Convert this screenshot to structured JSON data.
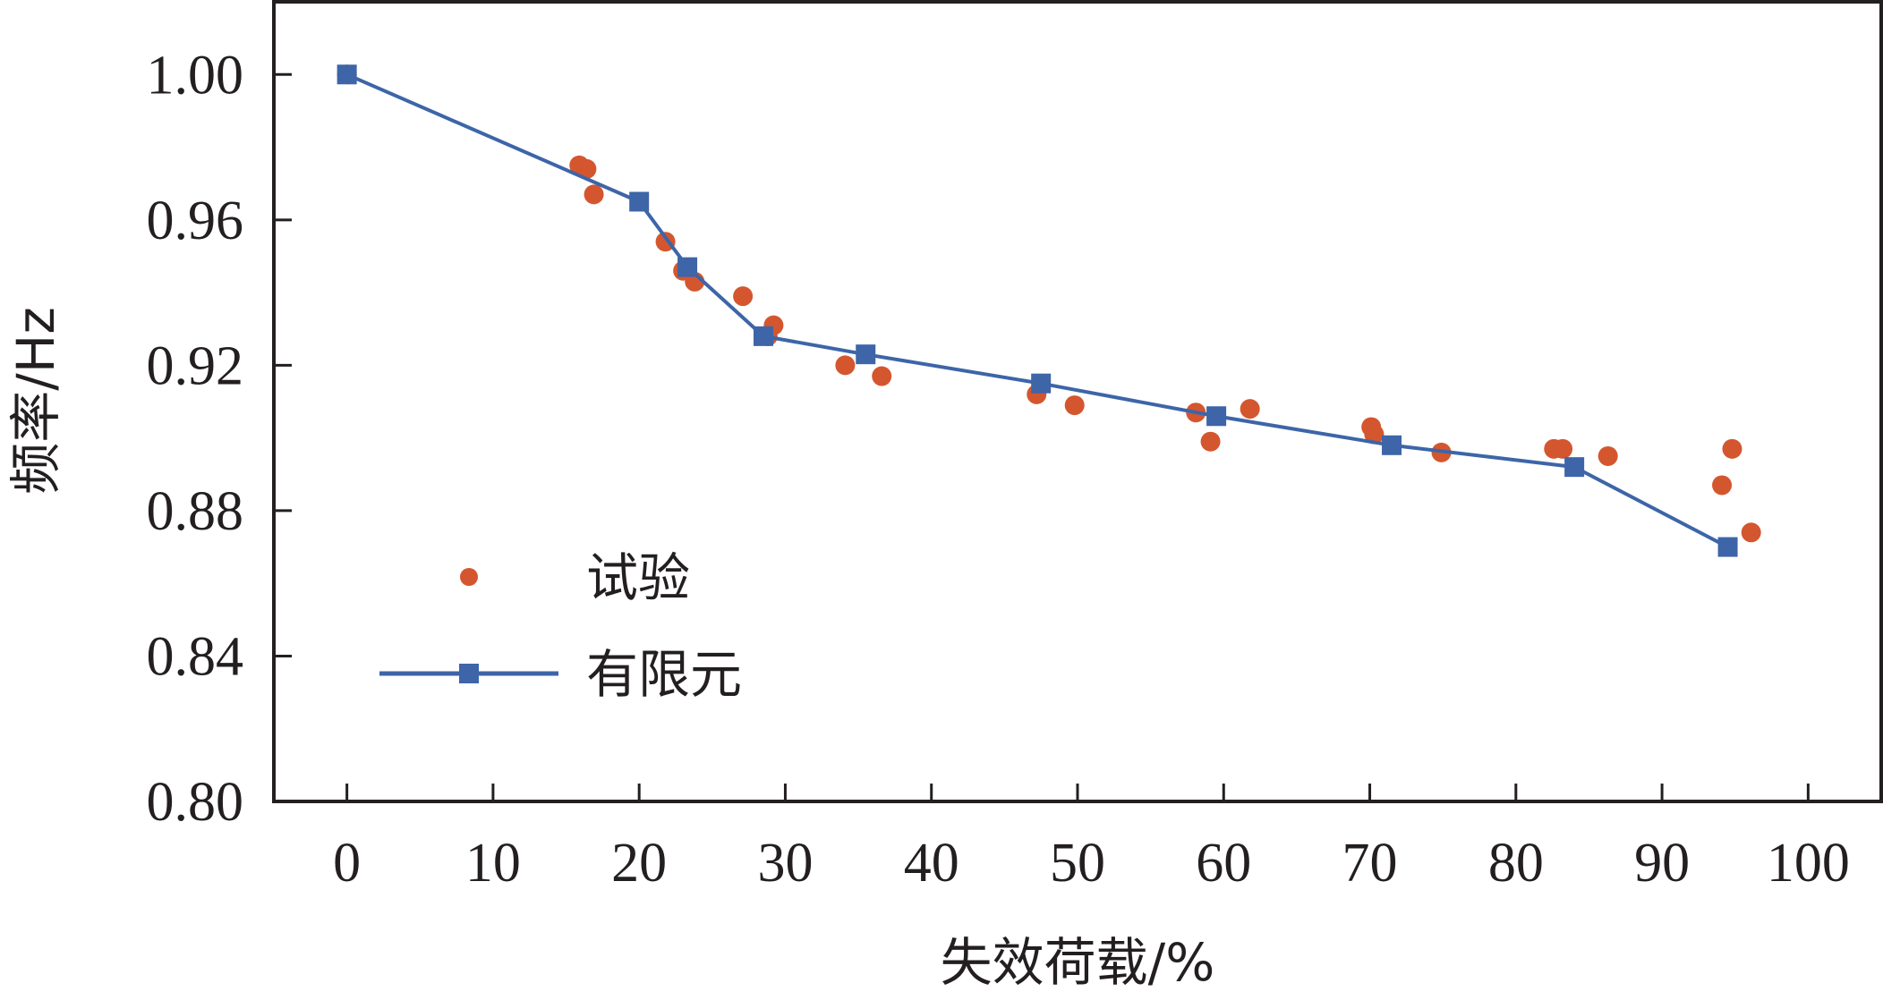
{
  "chart_data": {
    "type": "scatter",
    "title": "",
    "xlabel": "失效荷载/%",
    "ylabel": "频率/Hz",
    "xlim": [
      -5,
      105
    ],
    "ylim": [
      0.8,
      1.02
    ],
    "x_ticks": [
      0,
      10,
      20,
      30,
      40,
      50,
      60,
      70,
      80,
      90,
      100
    ],
    "x_tick_labels": [
      "0",
      "10",
      "20",
      "30",
      "40",
      "50",
      "60",
      "70",
      "80",
      "90",
      "100"
    ],
    "y_ticks": [
      0.8,
      0.84,
      0.88,
      0.92,
      0.96,
      1.0
    ],
    "y_tick_labels": [
      "0.80",
      "0.84",
      "0.88",
      "0.92",
      "0.96",
      "1.00"
    ],
    "grid": false,
    "legend_position": "lower-left",
    "series": [
      {
        "name": "试验",
        "kind": "scatter",
        "color": "#d4562f",
        "marker": "circle",
        "points": [
          [
            0.0,
            1.0
          ],
          [
            15.9,
            0.975
          ],
          [
            16.4,
            0.974
          ],
          [
            16.9,
            0.967
          ],
          [
            21.8,
            0.954
          ],
          [
            23.0,
            0.946
          ],
          [
            23.8,
            0.943
          ],
          [
            27.1,
            0.939
          ],
          [
            29.2,
            0.931
          ],
          [
            28.8,
            0.928
          ],
          [
            34.1,
            0.92
          ],
          [
            36.6,
            0.917
          ],
          [
            47.2,
            0.912
          ],
          [
            49.8,
            0.909
          ],
          [
            58.1,
            0.907
          ],
          [
            59.1,
            0.899
          ],
          [
            61.8,
            0.908
          ],
          [
            70.1,
            0.903
          ],
          [
            70.3,
            0.901
          ],
          [
            74.9,
            0.896
          ],
          [
            82.6,
            0.897
          ],
          [
            83.2,
            0.897
          ],
          [
            86.3,
            0.895
          ],
          [
            94.1,
            0.887
          ],
          [
            94.8,
            0.897
          ],
          [
            96.1,
            0.874
          ]
        ]
      },
      {
        "name": "有限元",
        "kind": "line",
        "color": "#3d65a8",
        "marker": "square",
        "points": [
          [
            0.0,
            1.0
          ],
          [
            20.0,
            0.965
          ],
          [
            23.3,
            0.947
          ],
          [
            28.5,
            0.928
          ],
          [
            35.5,
            0.923
          ],
          [
            47.5,
            0.915
          ],
          [
            59.5,
            0.906
          ],
          [
            71.5,
            0.898
          ],
          [
            84.0,
            0.892
          ],
          [
            94.5,
            0.87
          ]
        ]
      }
    ]
  }
}
